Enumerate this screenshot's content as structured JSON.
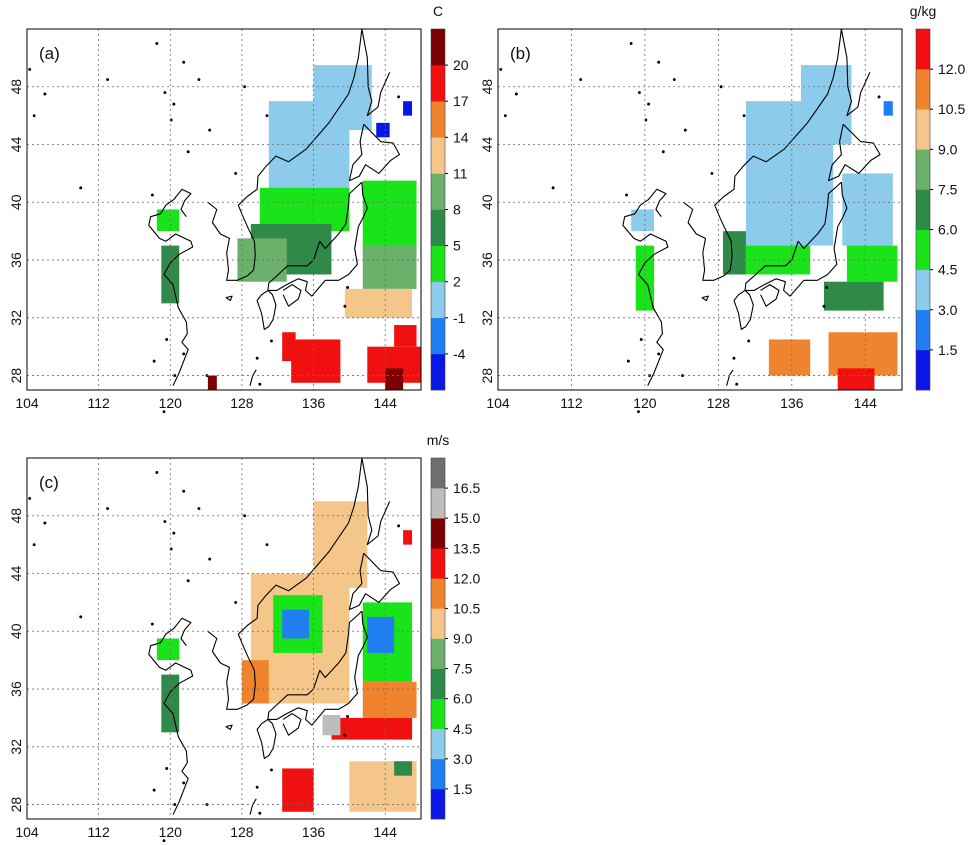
{
  "lon_ticks": [
    "104",
    "112",
    "120",
    "128",
    "136",
    "144"
  ],
  "lat_ticks": [
    "48",
    "44",
    "40",
    "36",
    "32",
    "28"
  ],
  "colors": {
    "coast": "#000000",
    "grid": "#6e6e6e",
    "palette": [
      "#0a16e6",
      "#1f7ef0",
      "#8ccbec",
      "#19e319",
      "#2f8a48",
      "#6bb06b",
      "#f5c68a",
      "#f0842e",
      "#f01010",
      "#7c0000",
      "#bdbdbd",
      "#6e6e6e"
    ]
  },
  "panels": [
    {
      "label": "(a)",
      "unit": "C",
      "ticks": [
        "20",
        "17",
        "14",
        "11",
        "8",
        "5",
        "2",
        "-1",
        "-4"
      ],
      "colors": [
        "#0a16e6",
        "#1f7ef0",
        "#8ccbec",
        "#19e319",
        "#2f8a48",
        "#6bb06b",
        "#f5c68a",
        "#f0842e",
        "#f01010",
        "#7c0000"
      ],
      "field": [
        {
          "lon": [
            131,
            140
          ],
          "lat": [
            40.5,
            47
          ],
          "c": 2
        },
        {
          "lon": [
            136,
            142.5
          ],
          "lat": [
            45,
            49.5
          ],
          "c": 2
        },
        {
          "lon": [
            130,
            140
          ],
          "lat": [
            38,
            41
          ],
          "c": 3
        },
        {
          "lon": [
            129,
            138
          ],
          "lat": [
            35,
            38.5
          ],
          "c": 4
        },
        {
          "lon": [
            127.5,
            133
          ],
          "lat": [
            34.5,
            37.5
          ],
          "c": 5
        },
        {
          "lon": [
            141.5,
            147.5
          ],
          "lat": [
            36.5,
            41.5
          ],
          "c": 3
        },
        {
          "lon": [
            141.5,
            147.5
          ],
          "lat": [
            34,
            37
          ],
          "c": 5
        },
        {
          "lon": [
            139.5,
            147
          ],
          "lat": [
            32,
            34
          ],
          "c": 6
        },
        {
          "lon": [
            119,
            121
          ],
          "lat": [
            33,
            37
          ],
          "c": 4
        },
        {
          "lon": [
            118.5,
            121
          ],
          "lat": [
            38,
            39.5
          ],
          "c": 3
        },
        {
          "lon": [
            133.5,
            139
          ],
          "lat": [
            27.5,
            30.5
          ],
          "c": 8
        },
        {
          "lon": [
            132.5,
            134
          ],
          "lat": [
            29,
            31
          ],
          "c": 8
        },
        {
          "lon": [
            142,
            148
          ],
          "lat": [
            27.5,
            30
          ],
          "c": 8
        },
        {
          "lon": [
            145,
            147.5
          ],
          "lat": [
            30,
            31.5
          ],
          "c": 8
        },
        {
          "lon": [
            144,
            146
          ],
          "lat": [
            27,
            28.5
          ],
          "c": 9
        },
        {
          "lon": [
            124.2,
            125.2
          ],
          "lat": [
            27,
            28
          ],
          "c": 9
        },
        {
          "lon": [
            146,
            147
          ],
          "lat": [
            46,
            47
          ],
          "c": 0
        },
        {
          "lon": [
            143,
            144.5
          ],
          "lat": [
            44.5,
            45.5
          ],
          "c": 0
        }
      ]
    },
    {
      "label": "(b)",
      "unit": "g/kg",
      "ticks": [
        "12.0",
        "10.5",
        "9.0",
        "7.5",
        "6.0",
        "4.5",
        "3.0",
        "1.5"
      ],
      "colors": [
        "#0a16e6",
        "#1f7ef0",
        "#8ccbec",
        "#19e319",
        "#2f8a48",
        "#6bb06b",
        "#f5c68a",
        "#f0842e",
        "#f01010"
      ],
      "field": [
        {
          "lon": [
            131,
            140.5
          ],
          "lat": [
            37,
            47
          ],
          "c": 2
        },
        {
          "lon": [
            137,
            142.5
          ],
          "lat": [
            44,
            49.5
          ],
          "c": 2
        },
        {
          "lon": [
            141.5,
            147
          ],
          "lat": [
            37,
            42
          ],
          "c": 2
        },
        {
          "lon": [
            131,
            138
          ],
          "lat": [
            35,
            37
          ],
          "c": 3
        },
        {
          "lon": [
            128.5,
            131
          ],
          "lat": [
            35,
            38
          ],
          "c": 4
        },
        {
          "lon": [
            142,
            147.5
          ],
          "lat": [
            34.5,
            37
          ],
          "c": 3
        },
        {
          "lon": [
            139.5,
            146
          ],
          "lat": [
            32.5,
            34.5
          ],
          "c": 4
        },
        {
          "lon": [
            119,
            121
          ],
          "lat": [
            32.5,
            37
          ],
          "c": 3
        },
        {
          "lon": [
            118.5,
            121
          ],
          "lat": [
            38,
            39.5
          ],
          "c": 2
        },
        {
          "lon": [
            133.5,
            138
          ],
          "lat": [
            28,
            30.5
          ],
          "c": 7
        },
        {
          "lon": [
            140,
            147.5
          ],
          "lat": [
            28,
            31
          ],
          "c": 7
        },
        {
          "lon": [
            141,
            145
          ],
          "lat": [
            27,
            28.5
          ],
          "c": 8
        },
        {
          "lon": [
            146,
            147
          ],
          "lat": [
            46,
            47
          ],
          "c": 1
        }
      ]
    },
    {
      "label": "(c)",
      "unit": "m/s",
      "ticks": [
        "16.5",
        "15.0",
        "13.5",
        "12.0",
        "10.5",
        "9.0",
        "7.5",
        "6.0",
        "4.5",
        "3.0",
        "1.5"
      ],
      "colors": [
        "#0a16e6",
        "#1f7ef0",
        "#8ccbec",
        "#19e319",
        "#2f8a48",
        "#6bb06b",
        "#f5c68a",
        "#f0842e",
        "#f01010",
        "#7c0000",
        "#bdbdbd",
        "#6e6e6e"
      ],
      "field": [
        {
          "lon": [
            129,
            140
          ],
          "lat": [
            35,
            44
          ],
          "c": 6
        },
        {
          "lon": [
            136,
            142
          ],
          "lat": [
            43,
            49
          ],
          "c": 6
        },
        {
          "lon": [
            131.5,
            137
          ],
          "lat": [
            38.5,
            42.5
          ],
          "c": 3
        },
        {
          "lon": [
            132.5,
            135.5
          ],
          "lat": [
            39.5,
            41.5
          ],
          "c": 1
        },
        {
          "lon": [
            141.5,
            147
          ],
          "lat": [
            36.5,
            42
          ],
          "c": 3
        },
        {
          "lon": [
            142,
            145
          ],
          "lat": [
            38.5,
            41
          ],
          "c": 1
        },
        {
          "lon": [
            141.5,
            147.5
          ],
          "lat": [
            34,
            36.5
          ],
          "c": 7
        },
        {
          "lon": [
            138,
            147
          ],
          "lat": [
            32.5,
            34
          ],
          "c": 8
        },
        {
          "lon": [
            137,
            139
          ],
          "lat": [
            32.8,
            34.2
          ],
          "c": 10
        },
        {
          "lon": [
            128,
            131
          ],
          "lat": [
            35,
            38
          ],
          "c": 7
        },
        {
          "lon": [
            119,
            121
          ],
          "lat": [
            33,
            37
          ],
          "c": 4
        },
        {
          "lon": [
            118.5,
            121
          ],
          "lat": [
            38,
            39.5
          ],
          "c": 3
        },
        {
          "lon": [
            132.5,
            136
          ],
          "lat": [
            27.5,
            30.5
          ],
          "c": 8
        },
        {
          "lon": [
            140,
            147.5
          ],
          "lat": [
            27.5,
            31
          ],
          "c": 6
        },
        {
          "lon": [
            145,
            147
          ],
          "lat": [
            30,
            31
          ],
          "c": 4
        },
        {
          "lon": [
            146,
            147
          ],
          "lat": [
            46,
            47
          ],
          "c": 8
        }
      ]
    }
  ]
}
